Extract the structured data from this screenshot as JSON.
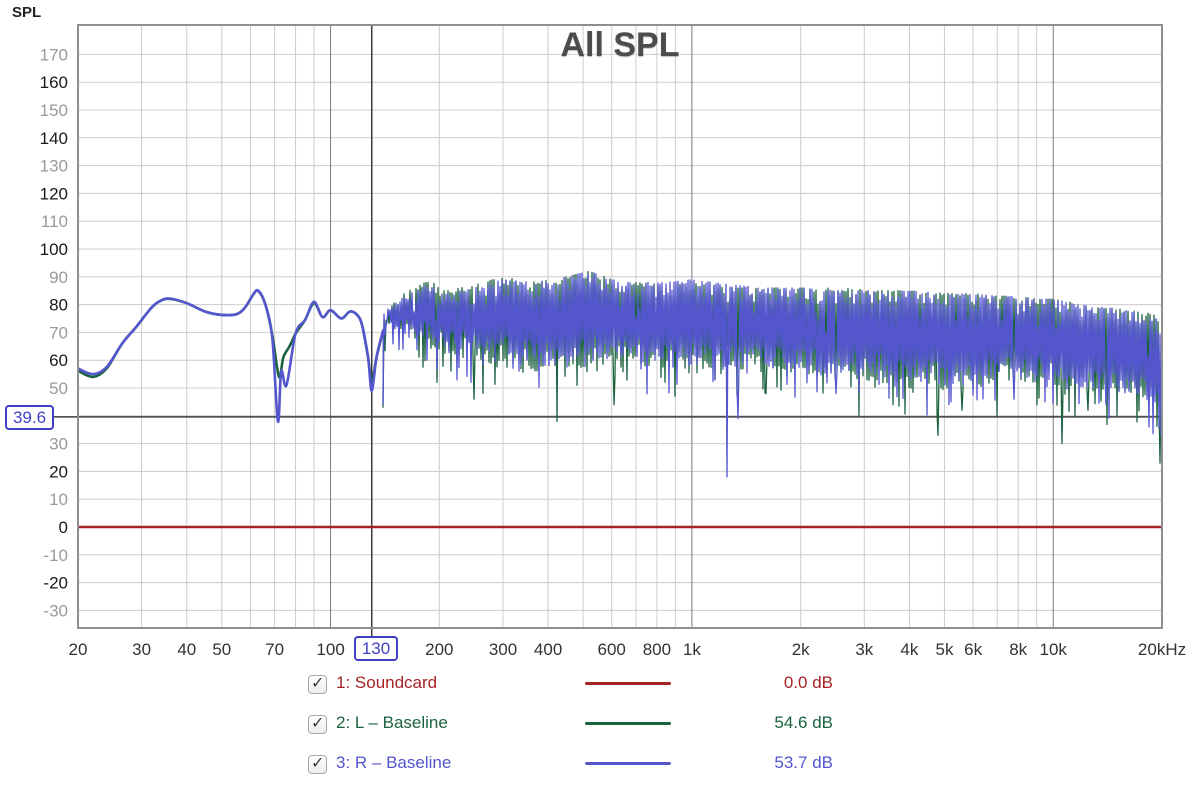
{
  "title": "All SPL",
  "axis_title": "SPL",
  "cursor": {
    "freq": 130,
    "freq_label": "130",
    "level": 39.6,
    "level_label": "39.6"
  },
  "legend": {
    "checkbox_glyph": "✓",
    "items": [
      {
        "checked": true,
        "label": "1: Soundcard",
        "value": "0.0 dB",
        "color": "#a62225"
      },
      {
        "checked": true,
        "label": "2: L – Baseline",
        "value": "54.6 dB",
        "color": "#1b6340"
      },
      {
        "checked": true,
        "label": "3: R – Baseline",
        "value": "53.7 dB",
        "color": "#5456ce"
      }
    ]
  },
  "colors": {
    "grid": "#cccccc",
    "grid_major": "#7a7a7a",
    "cursor": "#3a3a3a",
    "border": "#8f8f8f",
    "tick_strong": "#1a1a1a",
    "tick_weak": "#9a9a9a",
    "tick_x": "#333333",
    "cursor_accent": "#3f3fc6",
    "title": "#4c4c4c"
  },
  "chart_data": {
    "type": "line",
    "x_scale": "log",
    "x_unit": "Hz",
    "x_range": [
      20,
      20000
    ],
    "y_label": "SPL",
    "noise_seed": 7,
    "y_grid_db": [
      -30,
      -20,
      -10,
      0,
      10,
      20,
      30,
      40,
      50,
      60,
      70,
      80,
      90,
      100,
      110,
      120,
      130,
      140,
      150,
      160,
      170
    ],
    "y_ticks": [
      170,
      160,
      150,
      140,
      130,
      120,
      110,
      100,
      90,
      80,
      70,
      60,
      50,
      30,
      20,
      10,
      0,
      -10,
      -20,
      -30
    ],
    "x_ticks": [
      {
        "f": 20,
        "label": "20"
      },
      {
        "f": 30,
        "label": "30"
      },
      {
        "f": 40,
        "label": "40"
      },
      {
        "f": 50,
        "label": "50"
      },
      {
        "f": 70,
        "label": "70"
      },
      {
        "f": 100,
        "label": "100"
      },
      {
        "f": 200,
        "label": "200"
      },
      {
        "f": 300,
        "label": "300"
      },
      {
        "f": 400,
        "label": "400"
      },
      {
        "f": 600,
        "label": "600"
      },
      {
        "f": 800,
        "label": "800"
      },
      {
        "f": 1000,
        "label": "1k"
      },
      {
        "f": 2000,
        "label": "2k"
      },
      {
        "f": 3000,
        "label": "3k"
      },
      {
        "f": 4000,
        "label": "4k"
      },
      {
        "f": 5000,
        "label": "5k"
      },
      {
        "f": 6000,
        "label": "6k"
      },
      {
        "f": 8000,
        "label": "8k"
      },
      {
        "f": 10000,
        "label": "10k"
      },
      {
        "f": 20000,
        "label": "20kHz"
      }
    ],
    "grid_freqs": [
      20,
      30,
      40,
      50,
      60,
      70,
      80,
      90,
      100,
      200,
      300,
      400,
      500,
      600,
      700,
      800,
      900,
      1000,
      2000,
      3000,
      4000,
      5000,
      6000,
      7000,
      8000,
      9000,
      10000,
      20000
    ],
    "major_grid_freqs": [
      100,
      1000,
      10000
    ],
    "series": [
      {
        "name": "1: Soundcard",
        "color": "#a62225",
        "type": "flat",
        "level_db": 0.0
      },
      {
        "name": "2: L – Baseline",
        "color": "#1b6340",
        "type": "measured",
        "keypoints": [
          [
            20,
            56.2
          ],
          [
            22,
            54
          ],
          [
            24,
            57
          ],
          [
            26.5,
            66
          ],
          [
            29,
            72
          ],
          [
            32,
            79
          ],
          [
            34,
            81.5
          ],
          [
            36,
            82
          ],
          [
            40,
            80.5
          ],
          [
            45,
            77.5
          ],
          [
            50,
            76.3
          ],
          [
            55,
            76.6
          ],
          [
            58,
            79
          ],
          [
            61,
            83.5
          ],
          [
            63,
            85
          ],
          [
            66,
            80
          ],
          [
            69,
            69
          ],
          [
            72,
            54
          ],
          [
            74,
            61
          ],
          [
            77,
            65
          ],
          [
            80,
            69.5
          ],
          [
            85,
            74.5
          ],
          [
            90,
            80.5
          ],
          [
            95,
            75.5
          ],
          [
            100,
            78
          ],
          [
            107,
            75
          ],
          [
            113,
            77.5
          ],
          [
            118,
            76.5
          ],
          [
            122,
            73
          ],
          [
            127,
            61
          ],
          [
            130,
            52
          ],
          [
            134,
            61
          ],
          [
            140,
            71
          ]
        ],
        "noise_envelope": [
          [
            140,
            77,
            68
          ],
          [
            160,
            84,
            66
          ],
          [
            185,
            89,
            64
          ],
          [
            210,
            85,
            62
          ],
          [
            250,
            87,
            60
          ],
          [
            300,
            90,
            58
          ],
          [
            370,
            88,
            56
          ],
          [
            450,
            90,
            55
          ],
          [
            520,
            92,
            58
          ],
          [
            600,
            89,
            57
          ],
          [
            700,
            88,
            57
          ],
          [
            850,
            87,
            57
          ],
          [
            1000,
            88,
            57
          ],
          [
            1300,
            86,
            56
          ],
          [
            1600,
            86,
            56
          ],
          [
            2000,
            86,
            55
          ],
          [
            2600,
            86,
            53
          ],
          [
            3200,
            85,
            52
          ],
          [
            4000,
            85,
            50
          ],
          [
            5000,
            84,
            49
          ],
          [
            6000,
            84,
            50
          ],
          [
            7000,
            83,
            51
          ],
          [
            8000,
            83,
            52
          ],
          [
            9000,
            82,
            51
          ],
          [
            10000,
            82,
            50
          ],
          [
            12000,
            80,
            49
          ],
          [
            14000,
            79,
            48
          ],
          [
            16000,
            78,
            47
          ],
          [
            18000,
            77,
            45
          ],
          [
            20000,
            76,
            42
          ]
        ],
        "deep_dips": [
          [
            250,
            46
          ],
          [
            424,
            38
          ],
          [
            610,
            44
          ],
          [
            900,
            47
          ],
          [
            1600,
            48
          ],
          [
            2900,
            40
          ],
          [
            3600,
            44
          ],
          [
            4800,
            33
          ],
          [
            5600,
            42
          ],
          [
            7000,
            40
          ],
          [
            9000,
            44
          ],
          [
            10600,
            30
          ],
          [
            12500,
            42
          ],
          [
            15000,
            40
          ],
          [
            19800,
            23
          ]
        ]
      },
      {
        "name": "3: R – Baseline",
        "color": "#5456ce",
        "type": "measured",
        "keypoints": [
          [
            20,
            57
          ],
          [
            22,
            55
          ],
          [
            24,
            57.5
          ],
          [
            26.5,
            66
          ],
          [
            29,
            72
          ],
          [
            32,
            79
          ],
          [
            34,
            81.5
          ],
          [
            36,
            82.2
          ],
          [
            40,
            80.5
          ],
          [
            45,
            77.5
          ],
          [
            50,
            76.3
          ],
          [
            55,
            76.6
          ],
          [
            58,
            79
          ],
          [
            61,
            83.5
          ],
          [
            63,
            85
          ],
          [
            66,
            80
          ],
          [
            69,
            68
          ],
          [
            71.5,
            38
          ],
          [
            73,
            56
          ],
          [
            75.5,
            51
          ],
          [
            80,
            69.5
          ],
          [
            85,
            74.5
          ],
          [
            90,
            81
          ],
          [
            95,
            75.5
          ],
          [
            100,
            78
          ],
          [
            107,
            75
          ],
          [
            113,
            77.5
          ],
          [
            118,
            76.5
          ],
          [
            122,
            73
          ],
          [
            127,
            61
          ],
          [
            130,
            49
          ],
          [
            134,
            61
          ],
          [
            140,
            71
          ]
        ],
        "noise_envelope": [
          [
            140,
            77,
            69
          ],
          [
            160,
            83,
            67
          ],
          [
            185,
            87,
            65
          ],
          [
            210,
            84,
            63
          ],
          [
            250,
            86,
            62
          ],
          [
            300,
            89,
            60
          ],
          [
            370,
            88,
            58
          ],
          [
            450,
            90,
            57
          ],
          [
            520,
            92,
            60
          ],
          [
            600,
            89,
            59
          ],
          [
            700,
            88,
            59
          ],
          [
            850,
            88,
            58
          ],
          [
            1000,
            89,
            58
          ],
          [
            1300,
            87,
            57
          ],
          [
            1600,
            86,
            57
          ],
          [
            2000,
            86,
            56
          ],
          [
            2600,
            85,
            55
          ],
          [
            3200,
            85,
            54
          ],
          [
            4000,
            85,
            52
          ],
          [
            5000,
            84,
            51
          ],
          [
            6000,
            84,
            52
          ],
          [
            7000,
            83,
            52
          ],
          [
            8000,
            83,
            53
          ],
          [
            9000,
            82,
            52
          ],
          [
            10000,
            82,
            51
          ],
          [
            12000,
            80,
            50
          ],
          [
            14000,
            79,
            49
          ],
          [
            16000,
            78,
            48
          ],
          [
            18000,
            76,
            46
          ],
          [
            20000,
            75,
            40
          ]
        ],
        "deep_dips": [
          [
            1250,
            18
          ],
          [
            1340,
            39
          ],
          [
            2500,
            48
          ],
          [
            5200,
            45
          ],
          [
            7800,
            46
          ],
          [
            9500,
            45
          ],
          [
            14000,
            44
          ],
          [
            19900,
            33
          ]
        ]
      }
    ]
  }
}
